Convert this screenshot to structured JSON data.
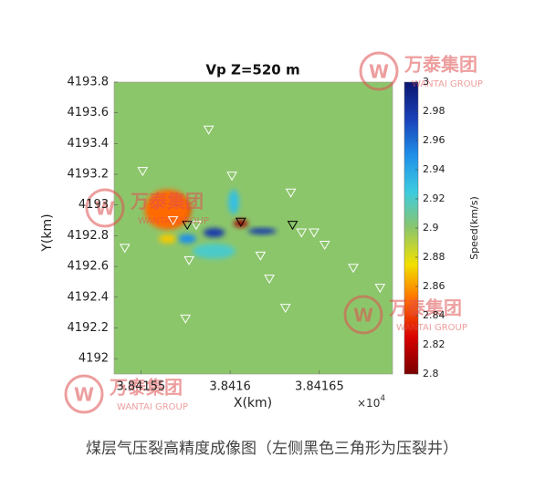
{
  "chart_data": {
    "type": "heatmap",
    "title": "Vp Z=520 m",
    "xlabel": "X(km)",
    "ylabel": "Y(km)",
    "x_multiplier": {
      "base": "×10",
      "exponent": "4"
    },
    "xlim": [
      3.841535,
      3.841691
    ],
    "xticks": [
      3.84155,
      3.8416,
      3.84165
    ],
    "ylim": [
      4191.9,
      4193.8
    ],
    "yticks": [
      4192,
      4192.2,
      4192.4,
      4192.6,
      4192.8,
      4193,
      4193.2,
      4193.4,
      4193.6,
      4193.8
    ],
    "colorbar": {
      "label": "Speed(km/s)",
      "lim": [
        2.8,
        3
      ],
      "ticks": [
        2.8,
        2.82,
        2.84,
        2.86,
        2.88,
        2.9,
        2.92,
        2.94,
        2.96,
        2.98,
        3
      ],
      "colormap": [
        "#7a0000",
        "#d80000",
        "#ff6a00",
        "#f2e000",
        "#8cc66b",
        "#3ccbe0",
        "#1f8fe8",
        "#1a40b8",
        "#0a1670"
      ]
    },
    "background_speed": 2.9,
    "anomalies": [
      {
        "x": 3.841568,
        "y": 4192.97,
        "rx": 9e-06,
        "ry": 0.09,
        "speed": 2.8
      },
      {
        "x": 3.841565,
        "y": 4192.97,
        "rx": 1.3e-05,
        "ry": 0.13,
        "speed": 2.85
      },
      {
        "x": 3.841565,
        "y": 4192.78,
        "rx": 5e-06,
        "ry": 0.03,
        "speed": 2.87
      },
      {
        "x": 3.841576,
        "y": 4192.78,
        "rx": 5e-06,
        "ry": 0.03,
        "speed": 2.95
      },
      {
        "x": 3.841591,
        "y": 4192.82,
        "rx": 6e-06,
        "ry": 0.03,
        "speed": 2.98
      },
      {
        "x": 3.841606,
        "y": 4192.88,
        "rx": 4e-06,
        "ry": 0.025,
        "speed": 2.81
      },
      {
        "x": 3.841618,
        "y": 4192.83,
        "rx": 8e-06,
        "ry": 0.02,
        "speed": 2.98
      },
      {
        "x": 3.841602,
        "y": 4193.02,
        "rx": 3e-06,
        "ry": 0.08,
        "speed": 2.93
      },
      {
        "x": 3.841591,
        "y": 4192.7,
        "rx": 1.2e-05,
        "ry": 0.05,
        "speed": 2.92
      }
    ],
    "series": [
      {
        "name": "stations",
        "color": "#ffffff",
        "x": [
          3.841588,
          3.841551,
          3.841601,
          3.841634,
          3.841568,
          3.841581,
          3.841541,
          3.841577,
          3.841617,
          3.84164,
          3.841647,
          3.841653,
          3.841669,
          3.841622,
          3.841684,
          3.841631,
          3.841575
        ],
        "values": [
          4193.49,
          4193.22,
          4193.19,
          4193.08,
          4192.9,
          4192.87,
          4192.72,
          4192.64,
          4192.67,
          4192.82,
          4192.82,
          4192.74,
          4192.59,
          4192.52,
          4192.46,
          4192.33,
          4192.26
        ]
      },
      {
        "name": "fracturing wells",
        "color": "#000000",
        "x": [
          3.841576,
          3.841606,
          3.841635
        ],
        "values": [
          4192.87,
          4192.89,
          4192.87
        ]
      }
    ]
  },
  "watermark": {
    "brand": "万泰集团",
    "sub": "WANTAI GROUP"
  },
  "caption": "煤层气压裂高精度成像图（左侧黑色三角形为压裂井）"
}
